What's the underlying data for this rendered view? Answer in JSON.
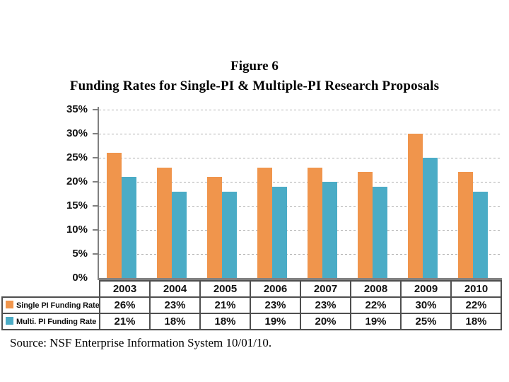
{
  "figure": {
    "label": "Figure 6",
    "title": "Funding Rates for Single-PI & Multiple-PI Research Proposals",
    "source": "Source: NSF Enterprise Information System 10/01/10."
  },
  "colors": {
    "single_pi": "#F0954C",
    "multi_pi": "#4BACC6",
    "axis": "#808080",
    "gridline": "#B0B0B0",
    "table_border": "#4F4F4F",
    "text": "#111111"
  },
  "chart_data": {
    "type": "bar",
    "title": "Figure 6",
    "subtitle": "Funding Rates for Single-PI & Multiple-PI Research Proposals",
    "categories": [
      "2003",
      "2004",
      "2005",
      "2006",
      "2007",
      "2008",
      "2009",
      "2010"
    ],
    "series": [
      {
        "name": "Single PI Funding Rate",
        "color": "#F0954C",
        "values": [
          26,
          23,
          21,
          23,
          23,
          22,
          30,
          22
        ],
        "cells": [
          "26%",
          "23%",
          "21%",
          "23%",
          "23%",
          "22%",
          "30%",
          "22%"
        ]
      },
      {
        "name": "Multi. PI Funding Rate",
        "color": "#4BACC6",
        "values": [
          21,
          18,
          18,
          19,
          20,
          19,
          25,
          18
        ],
        "cells": [
          "21%",
          "18%",
          "18%",
          "19%",
          "20%",
          "19%",
          "25%",
          "18%"
        ]
      }
    ],
    "xlabel": "",
    "ylabel": "",
    "ylim": [
      0,
      35
    ],
    "ytick_step": 5,
    "ytick_labels": [
      "0%",
      "5%",
      "10%",
      "15%",
      "20%",
      "25%",
      "30%",
      "35%"
    ],
    "grid": true,
    "legend_position": "table-left",
    "source": "Source: NSF Enterprise Information System 10/01/10."
  }
}
